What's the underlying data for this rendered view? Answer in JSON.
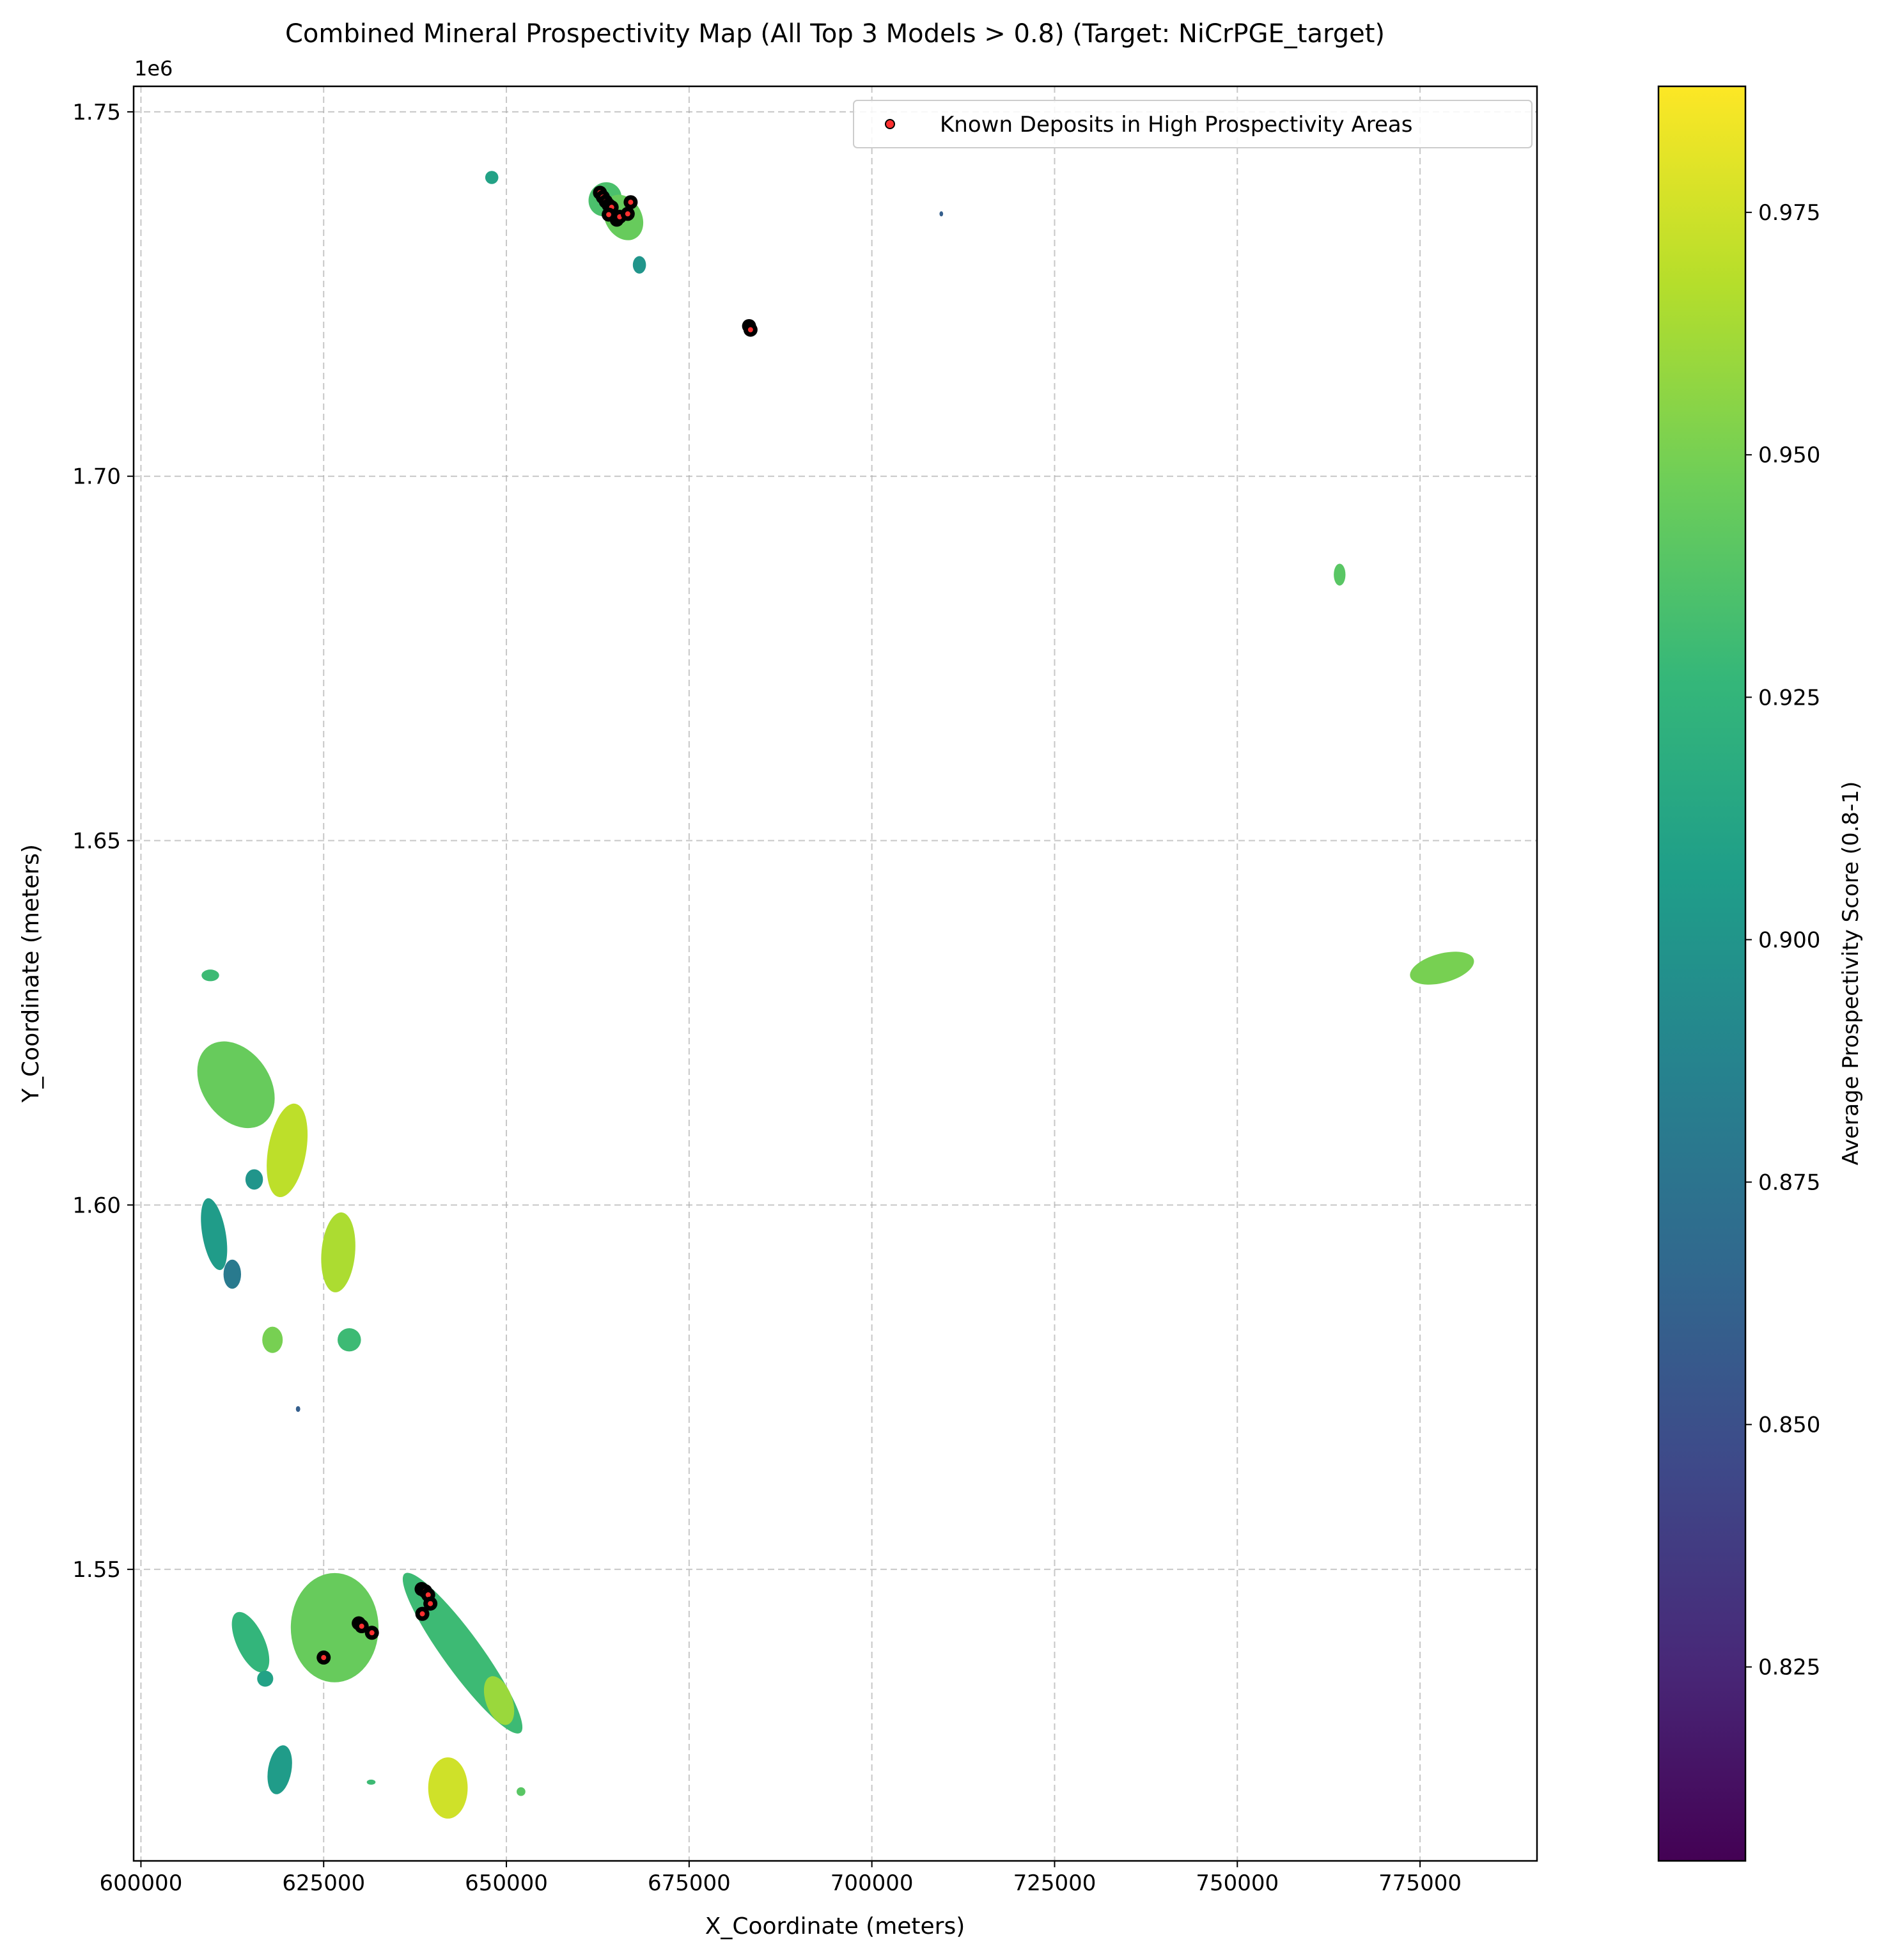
{
  "chart_data": {
    "type": "scatter",
    "title": "Combined Mineral Prospectivity Map (All Top 3 Models > 0.8) (Target: NiCrPGE_target)",
    "xlabel": "X_Coordinate (meters)",
    "ylabel": "Y_Coordinate (meters)",
    "y_offset_label": "1e6",
    "xlim": [
      599000,
      791000
    ],
    "ylim": [
      1510000,
      1753500
    ],
    "x_ticks": [
      600000,
      625000,
      650000,
      675000,
      700000,
      725000,
      750000,
      775000
    ],
    "x_tick_labels": [
      "600000",
      "625000",
      "650000",
      "675000",
      "700000",
      "725000",
      "750000",
      "775000"
    ],
    "y_ticks": [
      1550000,
      1600000,
      1650000,
      1700000,
      1750000
    ],
    "y_tick_labels": [
      "1.55",
      "1.60",
      "1.65",
      "1.70",
      "1.75"
    ],
    "grid": true,
    "legend_placement": "top-right",
    "colorbar": {
      "label": "Average Prospectivity Score (0.8-1)",
      "colormap": "viridis",
      "range": [
        0.805,
        0.988
      ],
      "ticks": [
        0.825,
        0.85,
        0.875,
        0.9,
        0.925,
        0.95,
        0.975
      ],
      "tick_labels": [
        "0.825",
        "0.850",
        "0.875",
        "0.900",
        "0.925",
        "0.950",
        "0.975"
      ],
      "stops": [
        "#440154",
        "#482878",
        "#3e4989",
        "#31688e",
        "#26828e",
        "#1f9e89",
        "#35b779",
        "#6ece58",
        "#b5de2b",
        "#fde725"
      ]
    },
    "regions": [
      {
        "x": 663500,
        "y": 1738000,
        "rx": 2200,
        "ry": 2400,
        "rot": 35,
        "score": 0.935
      },
      {
        "x": 666000,
        "y": 1735500,
        "rx": 2500,
        "ry": 3300,
        "rot": -30,
        "score": 0.945
      },
      {
        "x": 668200,
        "y": 1729000,
        "rx": 900,
        "ry": 1200,
        "rot": 0,
        "score": 0.9
      },
      {
        "x": 648000,
        "y": 1741000,
        "rx": 900,
        "ry": 900,
        "rot": 0,
        "score": 0.91
      },
      {
        "x": 709500,
        "y": 1736000,
        "rx": 250,
        "ry": 350,
        "rot": 0,
        "score": 0.86
      },
      {
        "x": 764000,
        "y": 1686500,
        "rx": 800,
        "ry": 1500,
        "rot": 0,
        "score": 0.94
      },
      {
        "x": 778000,
        "y": 1632500,
        "rx": 4500,
        "ry": 2000,
        "rot": -15,
        "score": 0.95
      },
      {
        "x": 609500,
        "y": 1631500,
        "rx": 1200,
        "ry": 800,
        "rot": 0,
        "score": 0.93
      },
      {
        "x": 613000,
        "y": 1616500,
        "rx": 4600,
        "ry": 6500,
        "rot": -35,
        "score": 0.945
      },
      {
        "x": 620000,
        "y": 1607500,
        "rx": 2600,
        "ry": 6500,
        "rot": 10,
        "score": 0.97
      },
      {
        "x": 615500,
        "y": 1603500,
        "rx": 1200,
        "ry": 1400,
        "rot": 0,
        "score": 0.9
      },
      {
        "x": 610000,
        "y": 1596000,
        "rx": 1600,
        "ry": 5000,
        "rot": -10,
        "score": 0.905
      },
      {
        "x": 612500,
        "y": 1590500,
        "rx": 1200,
        "ry": 2000,
        "rot": 0,
        "score": 0.88
      },
      {
        "x": 627000,
        "y": 1593500,
        "rx": 2300,
        "ry": 5500,
        "rot": 5,
        "score": 0.965
      },
      {
        "x": 618000,
        "y": 1581500,
        "rx": 1400,
        "ry": 1800,
        "rot": 0,
        "score": 0.95
      },
      {
        "x": 628500,
        "y": 1581500,
        "rx": 1600,
        "ry": 1600,
        "rot": 0,
        "score": 0.93
      },
      {
        "x": 621500,
        "y": 1572000,
        "rx": 300,
        "ry": 400,
        "rot": 0,
        "score": 0.86
      },
      {
        "x": 626500,
        "y": 1542000,
        "rx": 6000,
        "ry": 7500,
        "rot": 0,
        "score": 0.945
      },
      {
        "x": 615000,
        "y": 1540000,
        "rx": 1900,
        "ry": 4500,
        "rot": -25,
        "score": 0.925
      },
      {
        "x": 617000,
        "y": 1535000,
        "rx": 1100,
        "ry": 1100,
        "rot": 0,
        "score": 0.91
      },
      {
        "x": 619000,
        "y": 1522500,
        "rx": 1600,
        "ry": 3400,
        "rot": 10,
        "score": 0.905
      },
      {
        "x": 644000,
        "y": 1538500,
        "rx": 2600,
        "ry": 13500,
        "rot": -36,
        "score": 0.93
      },
      {
        "x": 649000,
        "y": 1532000,
        "rx": 1800,
        "ry": 3500,
        "rot": -20,
        "score": 0.96
      },
      {
        "x": 642000,
        "y": 1520000,
        "rx": 2700,
        "ry": 4200,
        "rot": 0,
        "score": 0.975
      },
      {
        "x": 631500,
        "y": 1520800,
        "rx": 600,
        "ry": 350,
        "rot": 0,
        "score": 0.93
      },
      {
        "x": 652000,
        "y": 1519500,
        "rx": 600,
        "ry": 600,
        "rot": 0,
        "score": 0.94
      }
    ],
    "series": [
      {
        "name": "Known Deposits in High Prospectivity Areas",
        "color": "#ff3030",
        "edgecolor": "#000000",
        "x": [
          662800,
          663200,
          663600,
          664000,
          664400,
          664000,
          665100,
          665500,
          666600,
          667000,
          683200,
          683400,
          625000,
          629800,
          630200,
          631600,
          638400,
          638900,
          639300,
          638500,
          639600
        ],
        "y": [
          1738900,
          1738300,
          1737700,
          1737200,
          1736900,
          1735900,
          1735200,
          1735600,
          1736000,
          1737600,
          1720600,
          1720100,
          1537900,
          1542600,
          1542200,
          1541300,
          1547300,
          1547000,
          1546500,
          1543900,
          1545300
        ]
      }
    ]
  }
}
